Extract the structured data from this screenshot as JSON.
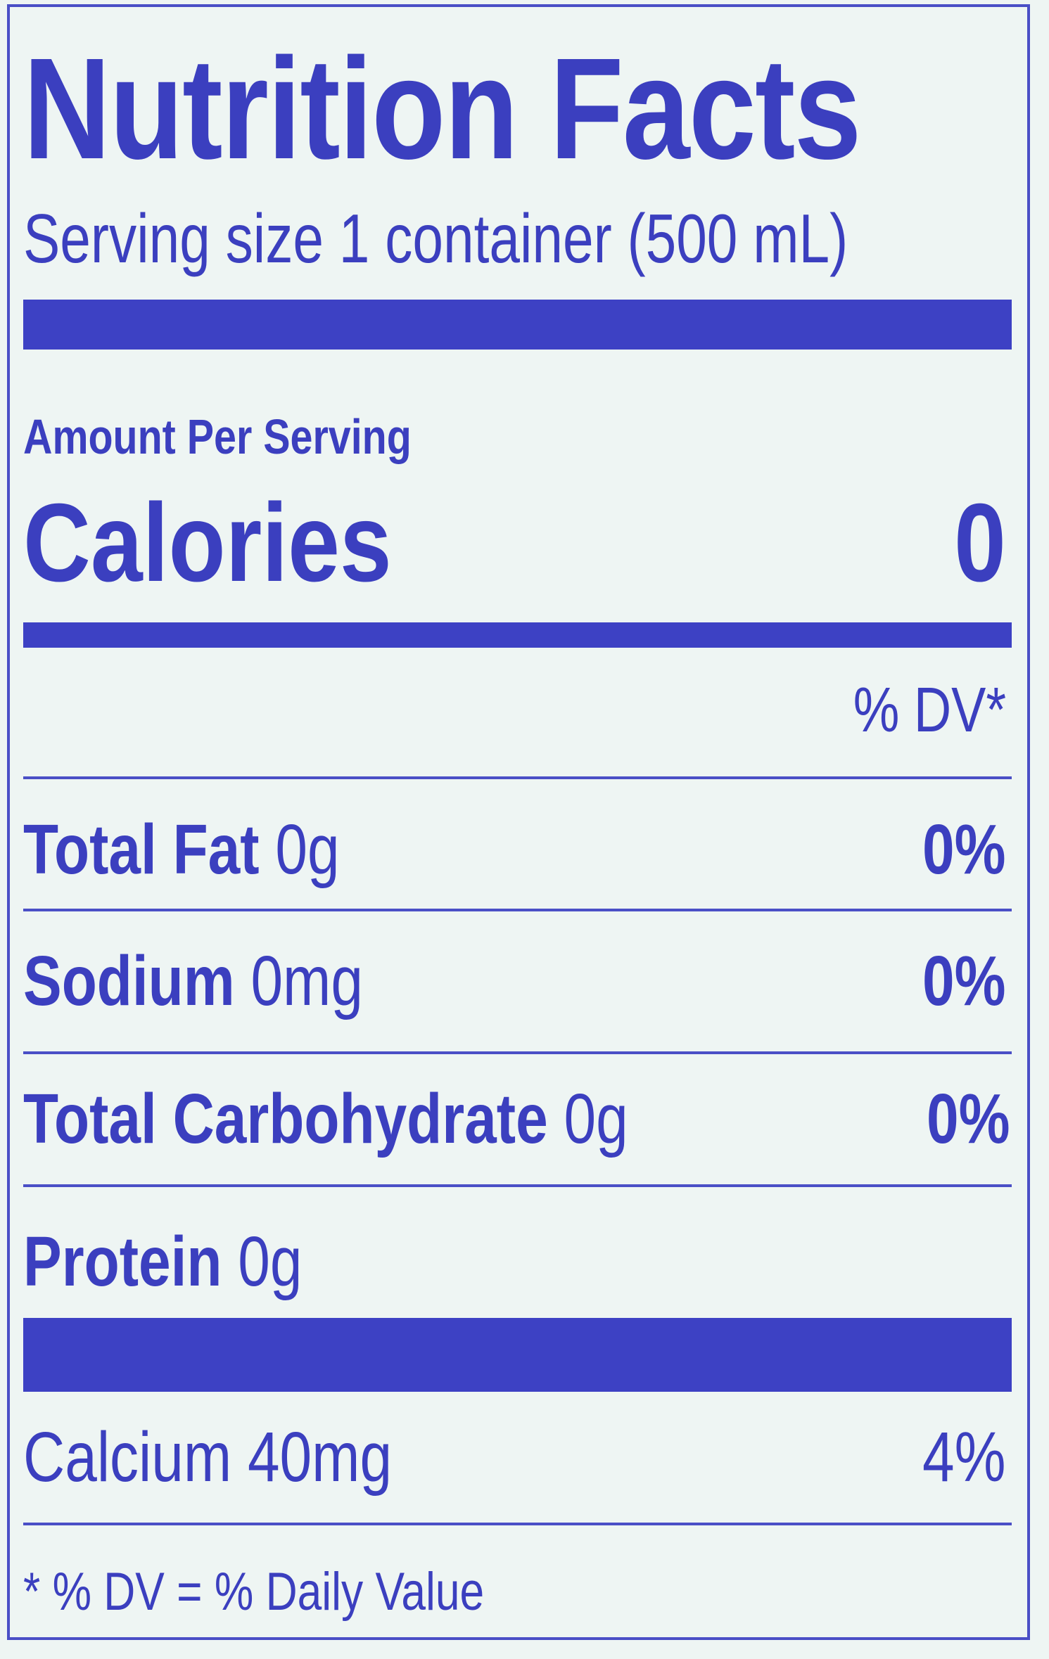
{
  "title": "Nutrition Facts",
  "serving_size": "Serving size 1 container (500 mL)",
  "amount_per_serving": "Amount Per Serving",
  "calories": {
    "label": "Calories",
    "value": "0"
  },
  "dv_header": "% DV*",
  "nutrients": [
    {
      "name": "Total Fat",
      "amount": "0g",
      "dv": "0%"
    },
    {
      "name": "Sodium",
      "amount": "0mg",
      "dv": "0%"
    },
    {
      "name": "Total Carbohydrate",
      "amount": "0g",
      "dv": "0%"
    },
    {
      "name": "Protein",
      "amount": "0g",
      "dv": ""
    }
  ],
  "vitamins": [
    {
      "name": "Calcium 40mg",
      "dv": "4%"
    }
  ],
  "footnote": "* % DV = % Daily Value",
  "colors": {
    "ink": "#3b3fbf",
    "background": "#eef5f3"
  }
}
